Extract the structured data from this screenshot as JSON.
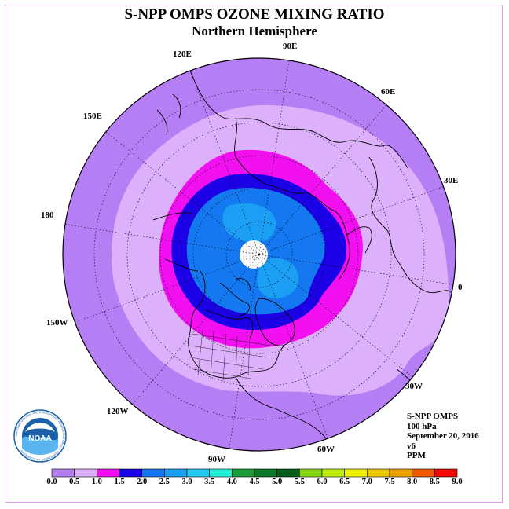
{
  "title": "S-NPP OMPS OZONE MIXING RATIO",
  "subtitle": "Northern Hemisphere",
  "longitude_labels": [
    "90E",
    "60E",
    "30E",
    "0",
    "30W",
    "60W",
    "90W",
    "120W",
    "150W",
    "180",
    "150E",
    "120E"
  ],
  "info": {
    "instrument": "S-NPP OMPS",
    "level": "100 hPa",
    "date": "September 20, 2016",
    "version": "v6",
    "units": "PPM"
  },
  "colorbar": {
    "ticks": [
      "0.0",
      "0.5",
      "1.0",
      "1.5",
      "2.0",
      "2.5",
      "3.0",
      "3.5",
      "4.0",
      "4.5",
      "5.0",
      "5.5",
      "6.0",
      "6.5",
      "7.0",
      "7.5",
      "8.0",
      "8.5",
      "9.0"
    ],
    "colors": [
      "#b57ef5",
      "#dcb0fa",
      "#f20ff0",
      "#1c00e6",
      "#1478f0",
      "#1a9ff5",
      "#28c8f5",
      "#26f0d8",
      "#1b9e38",
      "#0a7a2a",
      "#065e1c",
      "#86d61a",
      "#c0ee14",
      "#f0f00a",
      "#f0c80a",
      "#f0a000",
      "#f05a00",
      "#f00a00",
      "#8c5a3c"
    ]
  },
  "logo": {
    "text": "NOAA",
    "ring_text": "NATIONAL OCEANIC AND ATMOSPHERIC ADMINISTRATION U.S. DEPARTMENT OF COMMERCE"
  }
}
